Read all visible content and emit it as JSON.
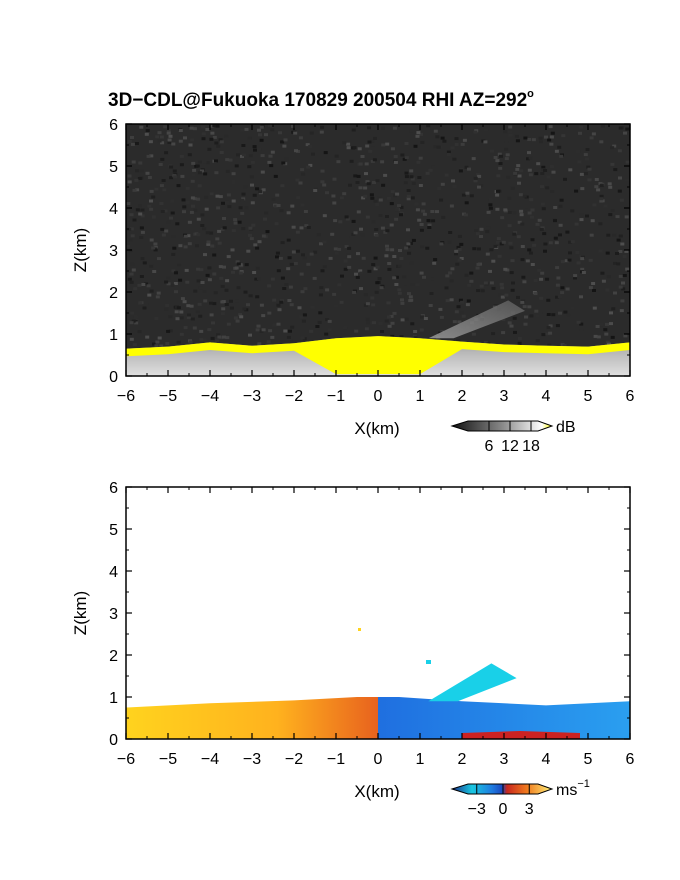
{
  "title": "3D−CDL@Fukuoka 170829 200504 RHI AZ=292",
  "title_superscript": "o",
  "chart_data": [
    {
      "type": "heatmap",
      "variable": "reflectivity",
      "xlabel": "X(km)",
      "ylabel": "Z(km)",
      "xlim": [
        -6,
        6
      ],
      "ylim": [
        0,
        6
      ],
      "xticks": [
        "−6",
        "−5",
        "−4",
        "−3",
        "−2",
        "−1",
        "0",
        "1",
        "2",
        "3",
        "4",
        "5",
        "6"
      ],
      "yticks": [
        "0",
        "1",
        "2",
        "3",
        "4",
        "5",
        "6"
      ],
      "colorbar": {
        "unit": "dB",
        "ticks": [
          "6",
          "12",
          "18"
        ],
        "range": [
          0,
          20
        ]
      },
      "background": "noise field, dark grey",
      "boundary_layer_top_km": [
        [
          -6,
          0.65
        ],
        [
          -5,
          0.7
        ],
        [
          -4,
          0.8
        ],
        [
          -3,
          0.72
        ],
        [
          -2,
          0.78
        ],
        [
          -1,
          0.9
        ],
        [
          0,
          0.95
        ],
        [
          1,
          0.9
        ],
        [
          2,
          0.82
        ],
        [
          3,
          0.75
        ],
        [
          4,
          0.72
        ],
        [
          5,
          0.7
        ],
        [
          6,
          0.8
        ]
      ],
      "plume": {
        "x_from_km": 1.2,
        "x_to_km": 3.5,
        "z_from_km": 0.9,
        "z_to_km": 1.8
      },
      "highlight_color": "#ffff00"
    },
    {
      "type": "heatmap",
      "variable": "doppler velocity",
      "xlabel": "X(km)",
      "ylabel": "Z(km)",
      "xlim": [
        -6,
        6
      ],
      "ylim": [
        0,
        6
      ],
      "xticks": [
        "−6",
        "−5",
        "−4",
        "−3",
        "−2",
        "−1",
        "0",
        "1",
        "2",
        "3",
        "4",
        "5",
        "6"
      ],
      "yticks": [
        "0",
        "1",
        "2",
        "3",
        "4",
        "5",
        "6"
      ],
      "colorbar": {
        "unit": "ms",
        "unit_superscript": "−1",
        "ticks": [
          "−3",
          "0",
          "3"
        ],
        "range": [
          -4,
          4
        ]
      },
      "velocity_field": [
        {
          "x_km": -6,
          "top_km": 0.75,
          "velocity_ms": 3.0
        },
        {
          "x_km": -4,
          "top_km": 0.85,
          "velocity_ms": 2.6
        },
        {
          "x_km": -2,
          "top_km": 0.92,
          "velocity_ms": 1.8
        },
        {
          "x_km": -0.5,
          "top_km": 1.0,
          "velocity_ms": 0.8
        },
        {
          "x_km": 0.5,
          "top_km": 1.0,
          "velocity_ms": -2.5
        },
        {
          "x_km": 2,
          "top_km": 0.9,
          "velocity_ms": -2.8
        },
        {
          "x_km": 4,
          "top_km": 0.8,
          "velocity_ms": -2.6
        },
        {
          "x_km": 6,
          "top_km": 0.9,
          "velocity_ms": -2.4
        }
      ],
      "plume": {
        "x_from_km": 1.2,
        "x_to_km": 3.3,
        "z_from_km": 0.9,
        "z_to_km": 1.8,
        "velocity_ms": -3.6
      }
    }
  ]
}
